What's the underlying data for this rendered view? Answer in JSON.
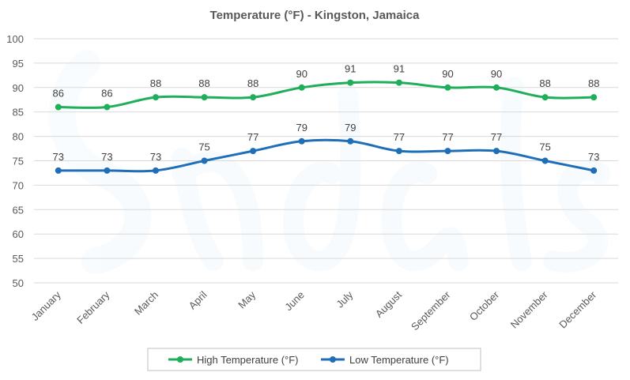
{
  "chart_data": {
    "type": "line",
    "title": "Temperature (°F) - Kingston, Jamaica",
    "categories": [
      "January",
      "February",
      "March",
      "April",
      "May",
      "June",
      "July",
      "August",
      "September",
      "October",
      "November",
      "December"
    ],
    "series": [
      {
        "name": "High Temperature (°F)",
        "color": "#1fae5a",
        "values": [
          86,
          86,
          88,
          88,
          88,
          90,
          91,
          91,
          90,
          90,
          88,
          88
        ]
      },
      {
        "name": "Low Temperature (°F)",
        "color": "#1f6fb8",
        "values": [
          73,
          73,
          73,
          75,
          77,
          79,
          79,
          77,
          77,
          77,
          75,
          73
        ]
      }
    ],
    "ylim": [
      50,
      100
    ],
    "yticks": [
      50,
      55,
      60,
      65,
      70,
      75,
      80,
      85,
      90,
      95,
      100
    ],
    "grid": true,
    "data_labels": true,
    "smooth": true,
    "legend_position": "bottom"
  }
}
